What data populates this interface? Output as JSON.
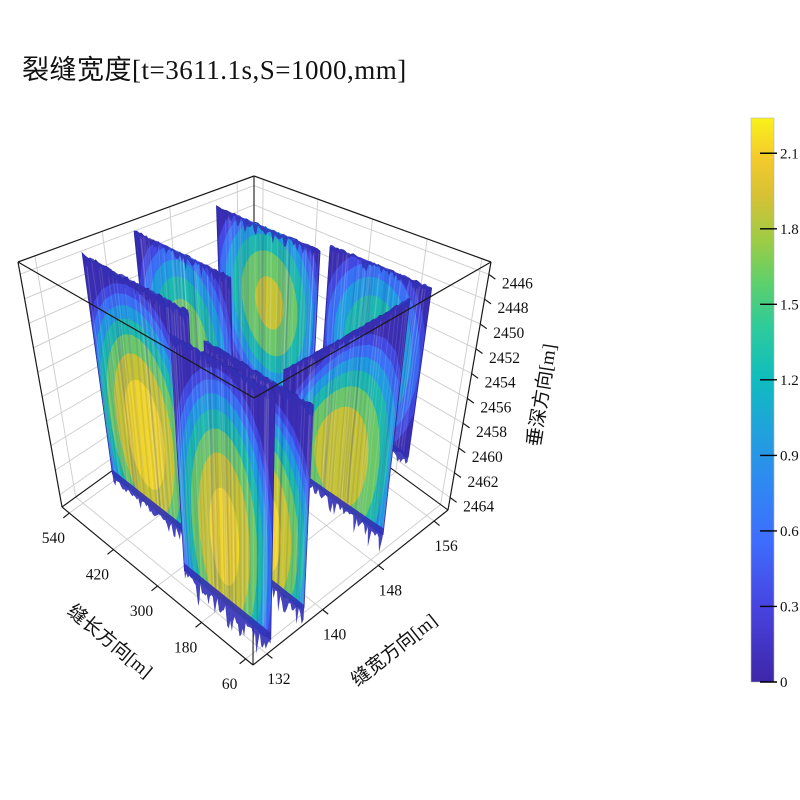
{
  "title": "裂缝宽度[t=3611.1s,S=1000,mm]",
  "chart_data": {
    "type": "heatmap",
    "subtype": "3d-fracture-aperture-surfaces",
    "title": "裂缝宽度[t=3611.1s,S=1000,mm]",
    "axes": {
      "length": {
        "label": "缝长方向[m]",
        "ticks": [
          540,
          420,
          300,
          180,
          60
        ],
        "range": [
          40,
          560
        ]
      },
      "width": {
        "label": "缝宽方向[m]",
        "ticks": [
          132,
          140,
          148,
          156
        ],
        "range": [
          130,
          158
        ]
      },
      "depth": {
        "label": "垂深方向[m]",
        "ticks": [
          2446,
          2448,
          2450,
          2452,
          2454,
          2456,
          2458,
          2460,
          2462,
          2464
        ],
        "range": [
          2445,
          2465
        ],
        "direction": "increasing-downward"
      }
    },
    "colorbar": {
      "ticks": [
        2.1,
        1.8,
        1.5,
        1.2,
        0.9,
        0.6,
        0.3,
        0
      ],
      "range": [
        0,
        2.24
      ],
      "colormap": "parula",
      "stops": [
        [
          0,
          "#3e26a8"
        ],
        [
          0.13,
          "#4743e0"
        ],
        [
          0.25,
          "#3e6dfe"
        ],
        [
          0.36,
          "#2e8bf0"
        ],
        [
          0.45,
          "#1fa3da"
        ],
        [
          0.54,
          "#0fbdbd"
        ],
        [
          0.63,
          "#2ecb9a"
        ],
        [
          0.71,
          "#5fd06a"
        ],
        [
          0.78,
          "#9bcc46"
        ],
        [
          0.86,
          "#d6c135"
        ],
        [
          0.93,
          "#f4ca2b"
        ],
        [
          1,
          "#f9f21a"
        ]
      ]
    },
    "band_levels": [
      0.3,
      0.6,
      0.9,
      1.2,
      1.5,
      1.8,
      2.1
    ],
    "band_colors": [
      "#3c2db2",
      "#4248e0",
      "#3a70f5",
      "#219be0",
      "#1db8ae",
      "#6cc769",
      "#c6c335",
      "#f0d52b"
    ],
    "panels": [
      {
        "name": "back-right-outer",
        "v": 0.95,
        "u0": 0.18,
        "u1": 0.62,
        "w0": 0.13,
        "wt0": 0.86,
        "wt1": 0.86,
        "vmax": 1.55,
        "pc": 0.5,
        "qc": 0.5,
        "rp": 0.6,
        "rq": 0.62,
        "spike": 0.05,
        "seed": 11
      },
      {
        "name": "back-right",
        "v": 0.78,
        "u0": 0.5,
        "u1": 0.94,
        "w0": 0.16,
        "wt0": 0.975,
        "wt1": 0.975,
        "vmax": 1.9,
        "pc": 0.48,
        "qc": 0.58,
        "rp": 0.6,
        "rq": 0.6,
        "spike": 0.06,
        "seed": 22
      },
      {
        "name": "back-mid",
        "v": 0.46,
        "u0": 0.56,
        "u1": 0.97,
        "w0": 0.1,
        "wt0": 0.985,
        "wt1": 0.985,
        "vmax": 1.8,
        "pc": 0.5,
        "qc": 0.5,
        "rp": 0.6,
        "rq": 0.62,
        "spike": 0.06,
        "seed": 33
      },
      {
        "name": "back-left",
        "v": 0.22,
        "u0": 0.5,
        "u1": 0.95,
        "w0": 0.03,
        "wt0": 0.985,
        "wt1": 0.985,
        "vmax": 2.35,
        "pc": 0.55,
        "qc": 0.32,
        "rp": 0.62,
        "rq": 0.68,
        "spike": 0.07,
        "seed": 44
      },
      {
        "name": "front-right",
        "v": 0.72,
        "u0": 0.06,
        "u1": 0.58,
        "w0": 0.03,
        "wt0": 0.99,
        "wt1": 0.44,
        "vmax": 2.1,
        "pc": 0.45,
        "qc": 0.28,
        "rp": 0.62,
        "rq": 0.72,
        "spike": 0.1,
        "seed": 55
      },
      {
        "name": "front-mid",
        "v": 0.3,
        "u0": 0.04,
        "u1": 0.52,
        "w0": 0.0,
        "wt0": 0.8,
        "wt1": 0.82,
        "vmax": 2.3,
        "pc": 0.45,
        "qc": 0.25,
        "rp": 0.6,
        "rq": 0.7,
        "spike": 0.12,
        "seed": 66
      },
      {
        "name": "front-left",
        "v": 0.12,
        "u0": 0.03,
        "u1": 0.48,
        "w0": 0.0,
        "wt0": 0.95,
        "wt1": 0.95,
        "vmax": 2.25,
        "pc": 0.52,
        "qc": 0.28,
        "rp": 0.6,
        "rq": 0.72,
        "spike": 0.12,
        "seed": 77
      }
    ],
    "grid": true,
    "legend_position": "right-colorbar"
  },
  "colors": {
    "background": "#ffffff",
    "grid": "#d0d0d0",
    "frame": "#1a1a1a",
    "panel_edge": "#2e2a9e",
    "fringe": "#3130b5",
    "text": "#111111"
  }
}
